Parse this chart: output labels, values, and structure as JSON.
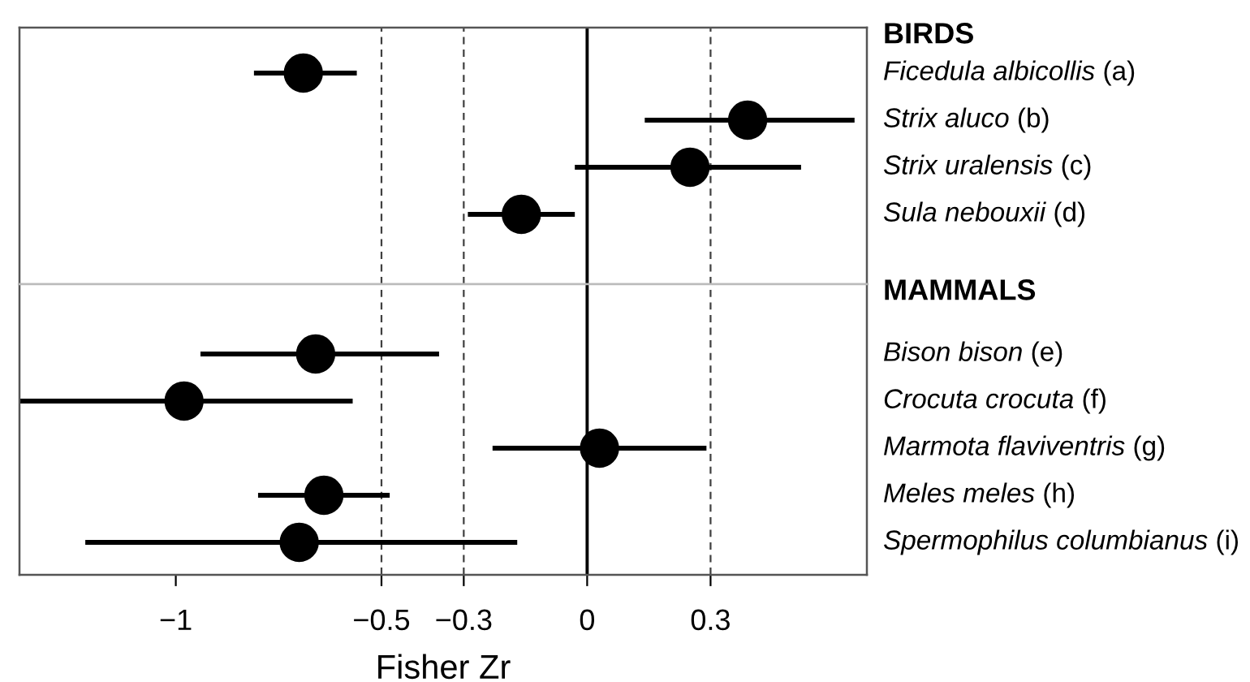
{
  "chart_data": [
    {
      "type": "scatter",
      "orientation": "horizontal",
      "title": "BIRDS",
      "categories": [
        "Ficedula albicollis (a)",
        "Strix aluco (b)",
        "Strix uralensis (c)",
        "Sula nebouxii (d)"
      ],
      "values": [
        -0.69,
        0.39,
        0.25,
        -0.16
      ],
      "errors": [
        [
          -0.81,
          -0.56
        ],
        [
          0.14,
          0.65
        ],
        [
          -0.03,
          0.52
        ],
        [
          -0.29,
          -0.03
        ]
      ],
      "color": "#000000",
      "marker": "circle",
      "xlim": [
        -1.38,
        0.68
      ],
      "tick_labels": "y",
      "grid": false,
      "ref_lines": [
        {
          "axis": "x",
          "value": 0,
          "line_style": "solid",
          "color": "#000000"
        },
        {
          "axis": "x",
          "value": -0.5,
          "line_style": "dashed",
          "color": "#404040"
        },
        {
          "axis": "x",
          "value": -0.3,
          "line_style": "dashed",
          "color": "#404040"
        },
        {
          "axis": "x",
          "value": 0.3,
          "line_style": "dashed",
          "color": "#404040"
        }
      ]
    },
    {
      "type": "scatter",
      "orientation": "horizontal",
      "title": "MAMMALS",
      "xlabel": "Fisher Zr",
      "categories": [
        "Bison bison (e)",
        "Crocuta crocuta (f)",
        "Marmota flaviventris (g)",
        "Meles meles (h)",
        "Spermophilus columbianus (i)"
      ],
      "values": [
        -0.66,
        -0.98,
        0.03,
        -0.64,
        -0.7
      ],
      "errors": [
        [
          -0.94,
          -0.36
        ],
        [
          -1.38,
          -0.57
        ],
        [
          -0.23,
          0.29
        ],
        [
          -0.8,
          -0.48
        ],
        [
          -1.22,
          -0.17
        ]
      ],
      "color": "#000000",
      "marker": "circle",
      "xlim": [
        -1.38,
        0.68
      ],
      "xticks": [
        {
          "value": -1,
          "label": "−1"
        },
        {
          "value": -0.5,
          "label": "−0.5"
        },
        {
          "value": -0.3,
          "label": "−0.3"
        },
        0,
        0.3
      ],
      "grid": false,
      "ref_lines": [
        {
          "axis": "x",
          "value": 0,
          "line_style": "solid",
          "color": "#000000"
        },
        {
          "axis": "x",
          "value": -0.5,
          "line_style": "dashed",
          "color": "#404040"
        },
        {
          "axis": "x",
          "value": -0.3,
          "line_style": "dashed",
          "color": "#404040"
        },
        {
          "axis": "x",
          "value": 0.3,
          "line_style": "dashed",
          "color": "#404040"
        }
      ]
    }
  ]
}
